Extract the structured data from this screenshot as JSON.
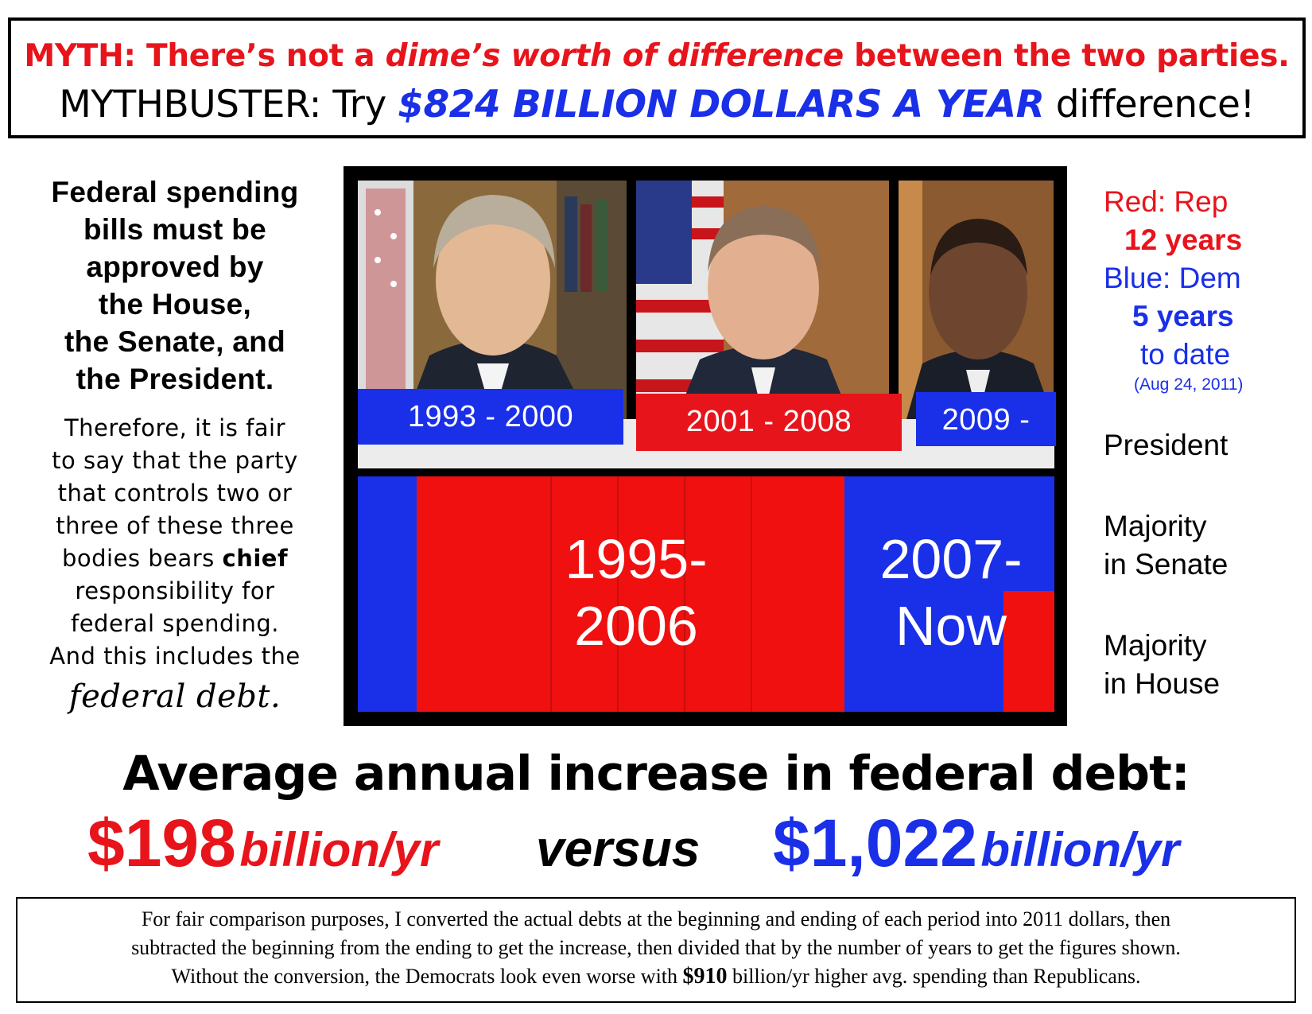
{
  "header": {
    "myth_prefix": "MYTH: There’s not a ",
    "myth_italic": "dime’s worth of difference",
    "myth_suffix": " between the two parties.",
    "buster_prefix": "MYTHBUSTER: Try ",
    "buster_amount": "$824 BILLION DOLLARS A YEAR",
    "buster_suffix": " difference!"
  },
  "left": {
    "bold_lines": [
      "Federal spending",
      "bills must be",
      "approved by",
      "the House,",
      "the Senate, and",
      "the President."
    ],
    "body_lines": [
      "Therefore, it is fair",
      "to say that the party",
      "that controls two or",
      "three of these three"
    ],
    "body_line5_prefix": "bodies bears ",
    "body_line5_bold": "chief",
    "body_lines_after": [
      "responsibility for",
      "federal spending.",
      "And this includes the"
    ],
    "federal_debt": "federal debt",
    "federal_debt_suffix": "."
  },
  "picture": {
    "terms": [
      "1993 - 2000",
      "2001 - 2008",
      "2009 -"
    ],
    "bar_labels": [
      [
        "1995-",
        "2006"
      ],
      [
        "2007-",
        "Now"
      ]
    ]
  },
  "legend": {
    "red_label": "Red: Rep",
    "red_years": "12 years",
    "blue_label": "Blue: Dem",
    "blue_years": "5 years",
    "blue_to_date": "to date",
    "date_note": "(Aug 24, 2011)"
  },
  "roles": {
    "president": "President",
    "senate": [
      "Majority",
      "in Senate"
    ],
    "house": [
      "Majority",
      "in House"
    ]
  },
  "summary": {
    "title": "Average annual increase in federal debt:",
    "rep_amount": "$198",
    "rep_unit": "billion/yr",
    "versus": "versus",
    "dem_amount": "$1,022",
    "dem_unit": "billion/yr"
  },
  "footnote": {
    "line1": "For fair comparison purposes, I converted the actual debts at the beginning and ending of each period into 2011 dollars, then",
    "line2": "subtracted the beginning from the ending to get the increase, then divided that by the number of years to get the figures shown.",
    "line3_prefix": "Without the conversion, the Democrats look even worse with ",
    "line3_bold": "$910",
    "line3_suffix": " billion/yr higher avg. spending than Republicans."
  },
  "colors": {
    "rep": "#e8141b",
    "dem": "#1a2fe8"
  },
  "icons": [
    "portrait-1-photo",
    "portrait-2-photo",
    "portrait-3-photo"
  ]
}
